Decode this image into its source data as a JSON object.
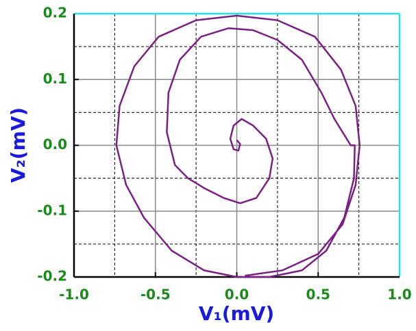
{
  "chart_data": {
    "type": "line",
    "xlabel": "V₁(mV)",
    "ylabel": "V₂(mV)",
    "xlim": [
      -1.0,
      1.0
    ],
    "ylim": [
      -0.2,
      0.2
    ],
    "xticks": [
      {
        "value": -1.0,
        "label": "-1.0"
      },
      {
        "value": -0.5,
        "label": "-0.5"
      },
      {
        "value": 0.0,
        "label": "0.0"
      },
      {
        "value": 0.5,
        "label": "0.5"
      },
      {
        "value": 1.0,
        "label": "1.0"
      }
    ],
    "yticks": [
      0.2,
      0.1,
      {
        "value": 0.0,
        "label": "0.0"
      },
      -0.1,
      -0.2
    ],
    "xminorticks": [
      -0.75,
      -0.25,
      0.25,
      0.75
    ],
    "yminorticks": [
      0.15,
      0.05,
      -0.05,
      -0.15
    ],
    "grid": true,
    "color": "#7a1f84",
    "x": [
      0.0,
      0.02,
      0.01,
      -0.02,
      -0.04,
      -0.02,
      0.03,
      0.1,
      0.18,
      0.22,
      0.2,
      0.12,
      0.02,
      -0.08,
      -0.2,
      -0.3,
      -0.38,
      -0.43,
      -0.42,
      -0.35,
      -0.22,
      -0.05,
      0.1,
      0.25,
      0.4,
      0.52,
      0.6,
      0.7,
      0.725,
      0.72,
      0.66,
      0.55,
      0.4,
      0.2,
      0.0,
      -0.2,
      -0.4,
      -0.57,
      -0.68,
      -0.74,
      -0.72,
      -0.63,
      -0.48,
      -0.25,
      0.0,
      0.25,
      0.48,
      0.64,
      0.73,
      0.755,
      0.73,
      0.65,
      0.5,
      0.28,
      0.05
    ],
    "values": [
      0.008,
      0.002,
      -0.008,
      -0.006,
      0.01,
      0.03,
      0.04,
      0.03,
      0.01,
      -0.02,
      -0.05,
      -0.08,
      -0.088,
      -0.08,
      -0.065,
      -0.05,
      -0.03,
      0.02,
      0.08,
      0.13,
      0.165,
      0.178,
      0.175,
      0.16,
      0.13,
      0.08,
      0.04,
      -0.0,
      -0.0,
      -0.05,
      -0.11,
      -0.16,
      -0.19,
      -0.2,
      -0.2,
      -0.19,
      -0.16,
      -0.11,
      -0.06,
      0.0,
      0.06,
      0.12,
      0.165,
      0.19,
      0.197,
      0.19,
      0.165,
      0.115,
      0.06,
      0.0,
      -0.06,
      -0.12,
      -0.165,
      -0.19,
      -0.198
    ]
  }
}
